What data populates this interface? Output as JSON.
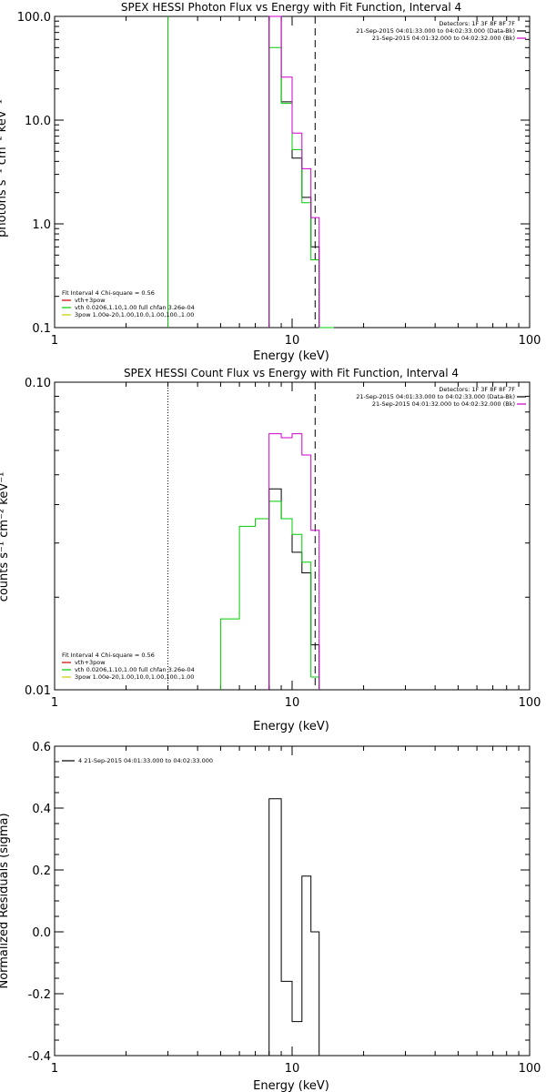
{
  "chart_data": [
    {
      "type": "line",
      "title": "SPEX HESSI Photon Flux vs Energy with Fit Function, Interval 4",
      "xlabel": "Energy (keV)",
      "ylabel": "photons s⁻¹ cm⁻² keV⁻¹",
      "x_scale": "log",
      "y_scale": "log",
      "xlim": [
        1,
        100
      ],
      "ylim": [
        0.1,
        100
      ],
      "x_ticks": [
        "1",
        "10",
        "100"
      ],
      "y_ticks": [
        "0.1",
        "1.0",
        "10.0",
        "100.0"
      ],
      "y_tick_values": [
        0.1,
        1,
        10,
        100
      ],
      "top_right_labels": [
        {
          "text": "Detectors: 1F 3F 8F 8F 7F",
          "color": "#000000"
        },
        {
          "text": "21-Sep-2015 04:01:33.000 to 04:02:33.000 (Data-Bk)",
          "color": "#000000"
        },
        {
          "text": "21-Sep-2015 04:01:32.000 to 04:02:32.000 (Bk)",
          "color": "#cc00cc"
        }
      ],
      "legend_title": "Fit Interval 4   Chi-square = 0.56",
      "legend": [
        {
          "text": "vth+3pow",
          "color": "#cc0000"
        },
        {
          "text": "vth 0.0206,1.10,1.00  full chfan 3.26e-04",
          "color": "#00cc00"
        },
        {
          "text": "3pow 1.00e-20,1.00,10.0,1.00,100.,1.00",
          "color": "#cccc00"
        }
      ],
      "vlines": [
        {
          "x": 3,
          "style": "solid",
          "color": "#00cc00"
        },
        {
          "x": 12.5,
          "style": "dashed",
          "color": "#000000"
        }
      ],
      "series": [
        {
          "color": "#000000",
          "edges": [
            8,
            9,
            10,
            11,
            12,
            13
          ],
          "values": [
            100,
            15,
            4.3,
            1.8,
            0.6
          ]
        },
        {
          "color": "#00cc00",
          "edges": [
            8,
            9,
            10,
            11,
            12,
            13,
            14,
            15
          ],
          "values": [
            50,
            14.5,
            5.2,
            1.6,
            0.45,
            0.1,
            0.09
          ]
        },
        {
          "color": "#cc00cc",
          "edges": [
            8,
            9,
            10,
            11,
            12,
            13
          ],
          "values": [
            100,
            26,
            7.5,
            3.4,
            1.15
          ]
        }
      ]
    },
    {
      "type": "line",
      "title": "SPEX HESSI Count Flux vs Energy with Fit Function, Interval 4",
      "xlabel": "Energy (keV)",
      "ylabel": "counts s⁻¹ cm⁻² keV⁻¹",
      "x_scale": "log",
      "y_scale": "log",
      "xlim": [
        1,
        100
      ],
      "ylim": [
        0.01,
        0.1
      ],
      "x_ticks": [
        "1",
        "10",
        "100"
      ],
      "y_ticks": [
        "0.01",
        "0.10"
      ],
      "y_tick_values": [
        0.01,
        0.1
      ],
      "top_right_labels": [
        {
          "text": "Detectors: 1F 3F 8F 8F 7F",
          "color": "#000000"
        },
        {
          "text": "21-Sep-2015 04:01:33.000 to 04:02:33.000 (Data-Bk)",
          "color": "#000000"
        },
        {
          "text": "21-Sep-2015 04:01:32.000 to 04:02:32.000 (Bk)",
          "color": "#cc00cc"
        }
      ],
      "legend_title": "Fit Interval 4   Chi-square = 0.56",
      "legend": [
        {
          "text": "vth+3pow",
          "color": "#cc0000"
        },
        {
          "text": "vth 0.0206,1.10,1.00  full chfan 3.26e-04",
          "color": "#00cc00"
        },
        {
          "text": "3pow 1.00e-20,1.00,10.0,1.00,100.,1.00",
          "color": "#cccc00"
        }
      ],
      "vlines": [
        {
          "x": 3,
          "style": "dotted",
          "color": "#000000"
        },
        {
          "x": 12.5,
          "style": "dashed",
          "color": "#000000"
        }
      ],
      "series": [
        {
          "color": "#000000",
          "edges": [
            8,
            9,
            10,
            11,
            12,
            13
          ],
          "values": [
            0.045,
            0.036,
            0.028,
            0.024,
            0.014
          ]
        },
        {
          "color": "#00cc00",
          "edges": [
            5,
            6,
            7,
            8,
            9,
            10,
            11,
            12,
            13
          ],
          "values": [
            0.017,
            0.034,
            0.036,
            0.041,
            0.036,
            0.032,
            0.026,
            0.011
          ]
        },
        {
          "color": "#cc00cc",
          "edges": [
            8,
            9,
            10,
            11,
            12,
            13
          ],
          "values": [
            0.068,
            0.066,
            0.068,
            0.058,
            0.033
          ]
        }
      ]
    },
    {
      "type": "line",
      "title": "",
      "xlabel": "Energy (keV)",
      "ylabel": "Normalized Residuals (sigma)",
      "x_scale": "log",
      "y_scale": "linear",
      "xlim": [
        1,
        100
      ],
      "ylim": [
        -0.4,
        0.6
      ],
      "x_ticks": [
        "1",
        "10",
        "100"
      ],
      "y_ticks": [
        "-0.4",
        "-0.2",
        "0.0",
        "0.2",
        "0.4",
        "0.6"
      ],
      "y_tick_values": [
        -0.4,
        -0.2,
        0,
        0.2,
        0.4,
        0.6
      ],
      "legend": [
        {
          "text": "4  21-Sep-2015 04:01:33.000 to 04:02:33.000",
          "color": "#000000"
        }
      ],
      "series": [
        {
          "color": "#000000",
          "edges": [
            8,
            9,
            10,
            11,
            12,
            13
          ],
          "values": [
            0.43,
            -0.16,
            -0.29,
            0.18,
            0.0
          ]
        }
      ]
    }
  ]
}
